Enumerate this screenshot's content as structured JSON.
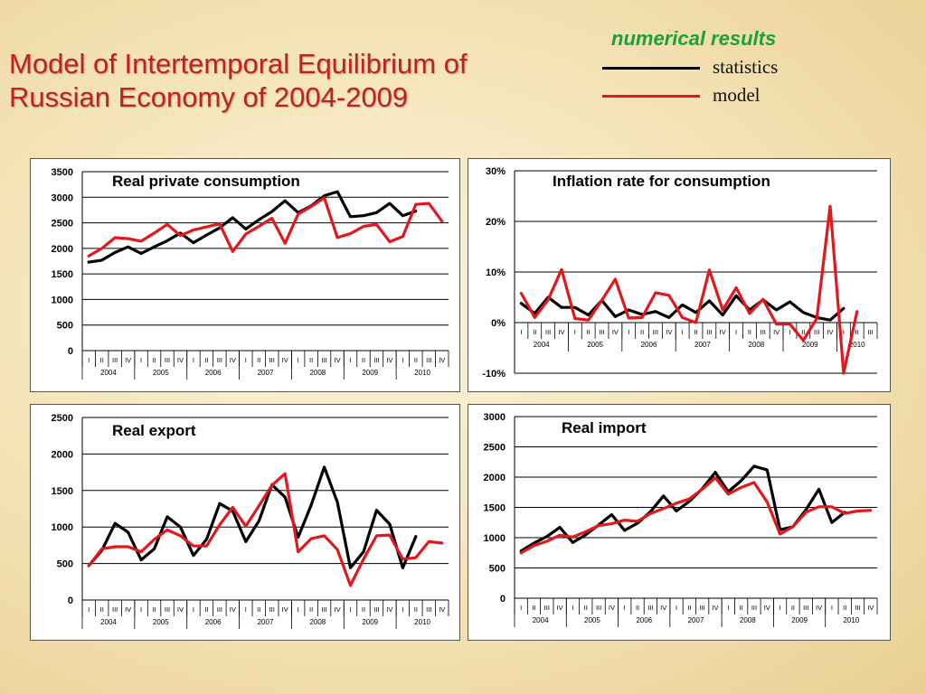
{
  "slide": {
    "title_line1": "Model of Intertemporal Equilibrium of",
    "title_line2": "Russian Economy of 2004-2009",
    "legend_header": "numerical results",
    "legend_statistics": "statistics",
    "legend_model": "model"
  },
  "colors": {
    "statistics": "#000000",
    "model": "#e3181c",
    "header": "#19a03a",
    "title": "#c0202a"
  },
  "chart_data": [
    {
      "type": "line",
      "title": "Real private consumption",
      "ylim": [
        0,
        3500
      ],
      "yticks": [
        0,
        500,
        1000,
        1500,
        2000,
        2500,
        3000,
        3500
      ],
      "ytick_labels": [
        "0",
        "500",
        "1000",
        "1500",
        "2000",
        "2500",
        "3000",
        "3500"
      ],
      "quarters": [
        "I",
        "II",
        "III",
        "IV",
        "I",
        "II",
        "III",
        "IV",
        "I",
        "II",
        "III",
        "IV",
        "I",
        "II",
        "III",
        "IV",
        "I",
        "II",
        "III",
        "IV",
        "I",
        "II",
        "III",
        "IV",
        "I",
        "II",
        "III",
        "IV"
      ],
      "years": [
        "2004",
        "2005",
        "2006",
        "2007",
        "2008",
        "2009",
        "2010"
      ],
      "series": [
        {
          "name": "statistics",
          "values": [
            1730,
            1770,
            1920,
            2030,
            1900,
            2030,
            2150,
            2300,
            2110,
            2260,
            2400,
            2600,
            2380,
            2560,
            2720,
            2930,
            2700,
            2830,
            3030,
            3110,
            2620,
            2640,
            2700,
            2880,
            2640,
            2730,
            null,
            null
          ]
        },
        {
          "name": "model",
          "values": [
            1850,
            2000,
            2210,
            2190,
            2140,
            2300,
            2470,
            2250,
            2360,
            2420,
            2480,
            1940,
            2280,
            2430,
            2590,
            2100,
            2670,
            2820,
            2990,
            2210,
            2290,
            2430,
            2470,
            2130,
            2230,
            2860,
            2880,
            2530
          ]
        }
      ]
    },
    {
      "type": "line",
      "title": "Inflation rate for consumption",
      "ylim": [
        -10,
        30
      ],
      "yticks": [
        -10,
        0,
        10,
        20,
        30
      ],
      "ytick_labels": [
        "-10%",
        "0%",
        "10%",
        "20%",
        "30%"
      ],
      "quarters": [
        "I",
        "II",
        "III",
        "IV",
        "I",
        "II",
        "III",
        "IV",
        "I",
        "II",
        "III",
        "IV",
        "I",
        "II",
        "III",
        "IV",
        "I",
        "II",
        "III",
        "IV",
        "I",
        "II",
        "III",
        "IV",
        "I",
        "II",
        "III"
      ],
      "years": [
        "2004",
        "2005",
        "2006",
        "2007",
        "2008",
        "2009",
        "2010"
      ],
      "series": [
        {
          "name": "statistics",
          "values": [
            3.8,
            1.8,
            5.0,
            3.0,
            3.0,
            1.5,
            4.4,
            1.2,
            2.5,
            1.6,
            2.2,
            1.0,
            3.5,
            2.0,
            4.3,
            1.5,
            5.3,
            2.5,
            4.5,
            2.5,
            4.1,
            2.0,
            1.0,
            0.5,
            2.8,
            null,
            null
          ]
        },
        {
          "name": "model",
          "values": [
            5.8,
            1.0,
            4.5,
            10.5,
            0.8,
            0.5,
            4.4,
            8.6,
            0.9,
            1.0,
            5.9,
            5.4,
            1.0,
            0.0,
            10.4,
            2.5,
            6.9,
            1.8,
            4.6,
            -0.3,
            -0.3,
            -3.5,
            0.8,
            23.0,
            -10.0,
            2.2,
            null
          ]
        }
      ]
    },
    {
      "type": "line",
      "title": "Real export",
      "ylim": [
        0,
        2500
      ],
      "yticks": [
        0,
        500,
        1000,
        1500,
        2000,
        2500
      ],
      "ytick_labels": [
        "0",
        "500",
        "1000",
        "1500",
        "2000",
        "2500"
      ],
      "quarters": [
        "I",
        "II",
        "III",
        "IV",
        "I",
        "II",
        "III",
        "IV",
        "I",
        "II",
        "III",
        "IV",
        "I",
        "II",
        "III",
        "IV",
        "I",
        "II",
        "III",
        "IV",
        "I",
        "II",
        "III",
        "IV",
        "I",
        "II",
        "III",
        "IV"
      ],
      "years": [
        "2004",
        "2005",
        "2006",
        "2007",
        "2008",
        "2009",
        "2010"
      ],
      "series": [
        {
          "name": "statistics",
          "values": [
            470,
            680,
            1050,
            930,
            550,
            700,
            1140,
            1000,
            610,
            830,
            1320,
            1220,
            800,
            1080,
            1580,
            1410,
            860,
            1300,
            1820,
            1340,
            440,
            660,
            1230,
            1040,
            440,
            870,
            null,
            null
          ]
        },
        {
          "name": "model",
          "values": [
            470,
            700,
            730,
            730,
            660,
            830,
            960,
            880,
            740,
            740,
            1030,
            1270,
            1010,
            1290,
            1570,
            1730,
            660,
            840,
            880,
            690,
            200,
            560,
            880,
            890,
            560,
            580,
            800,
            780
          ]
        }
      ]
    },
    {
      "type": "line",
      "title": "Real import",
      "ylim": [
        0,
        3000
      ],
      "yticks": [
        0,
        500,
        1000,
        1500,
        2000,
        2500,
        3000
      ],
      "ytick_labels": [
        "0",
        "500",
        "1000",
        "1500",
        "2000",
        "2500",
        "3000"
      ],
      "quarters": [
        "I",
        "II",
        "III",
        "IV",
        "I",
        "II",
        "III",
        "IV",
        "I",
        "II",
        "III",
        "IV",
        "I",
        "II",
        "III",
        "IV",
        "I",
        "II",
        "III",
        "IV",
        "I",
        "II",
        "III",
        "IV",
        "I",
        "II",
        "III",
        "IV"
      ],
      "years": [
        "2004",
        "2005",
        "2006",
        "2007",
        "2008",
        "2009",
        "2010"
      ],
      "series": [
        {
          "name": "statistics",
          "values": [
            780,
            910,
            1020,
            1170,
            920,
            1050,
            1210,
            1380,
            1120,
            1240,
            1430,
            1690,
            1440,
            1600,
            1810,
            2080,
            1760,
            1940,
            2180,
            2120,
            1130,
            1180,
            1460,
            1800,
            1250,
            1420,
            null,
            null
          ]
        },
        {
          "name": "model",
          "values": [
            750,
            870,
            940,
            1040,
            1010,
            1100,
            1200,
            1230,
            1290,
            1270,
            1400,
            1480,
            1570,
            1640,
            1800,
            1990,
            1720,
            1830,
            1910,
            1590,
            1060,
            1180,
            1420,
            1510,
            1510,
            1400,
            1440,
            1450
          ]
        }
      ]
    }
  ]
}
